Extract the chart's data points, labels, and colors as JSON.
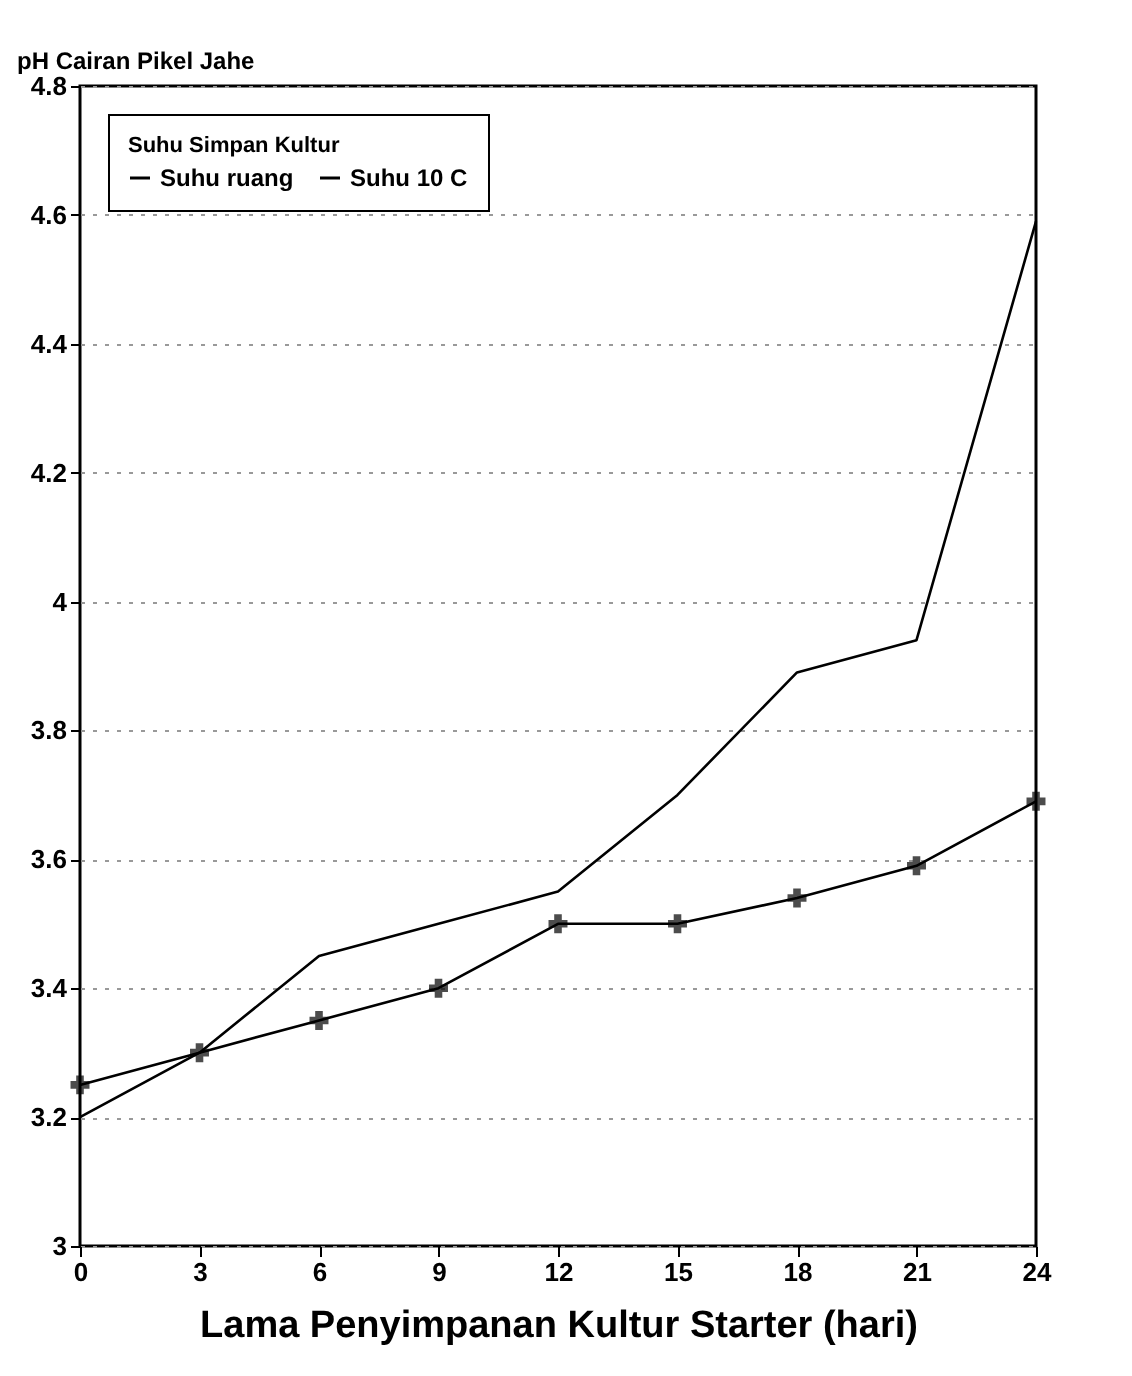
{
  "chart_data": {
    "type": "line",
    "ylabel": "pH Cairan Pikel Jahe",
    "xlabel": "Lama Penyimpanan Kultur Starter (hari)",
    "legend_title": "Suhu Simpan Kultur",
    "x": [
      0,
      3,
      6,
      9,
      12,
      15,
      18,
      21,
      24
    ],
    "series": [
      {
        "name": "Suhu ruang",
        "color": "#000000",
        "marker": "none",
        "values": [
          3.2,
          3.3,
          3.45,
          3.5,
          3.55,
          3.7,
          3.89,
          3.94,
          4.59
        ]
      },
      {
        "name": "Suhu 10 C",
        "color": "#000000",
        "marker": "cross",
        "values": [
          3.25,
          3.3,
          3.35,
          3.4,
          3.5,
          3.5,
          3.54,
          3.59,
          3.69
        ]
      }
    ],
    "xlim": [
      0,
      24
    ],
    "xticks": [
      0,
      3,
      6,
      9,
      12,
      15,
      18,
      21,
      24
    ],
    "ylim": [
      3,
      4.8
    ],
    "yticks": [
      3,
      3.2,
      3.4,
      3.6,
      3.8,
      {
        "value": 4,
        "label": "4"
      },
      4.2,
      4.4,
      4.6,
      4.8
    ],
    "grid": "y",
    "legend": "top left",
    "line_style": "solid"
  }
}
